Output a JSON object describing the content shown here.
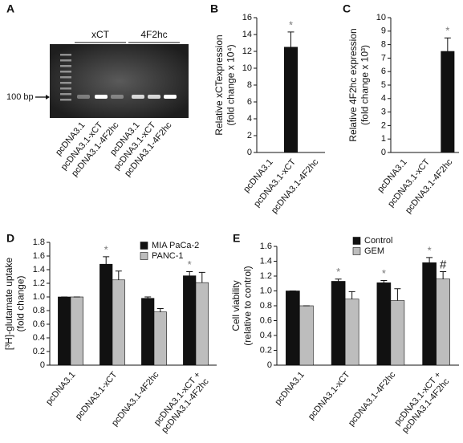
{
  "chart_data": [
    {
      "type": "gel",
      "panel_label": "A",
      "groups": [
        "xCT",
        "4F2hc"
      ],
      "ladder_label": "100 bp",
      "categories": [
        "pcDNA3.1",
        "pcDNA3.1-xCT",
        "pcDNA3.1-4F2hc",
        "pcDNA3.1",
        "pcDNA3.1-xCT",
        "pcDNA3.1-4F2hc"
      ]
    },
    {
      "type": "bar",
      "panel_label": "B",
      "y_label": "Relative xCTexpression\n(fold change x 10⁴)",
      "categories": [
        "pcDNA3.1",
        "pcDNA3.1-xCT",
        "pcDNA3.1-4F2hc"
      ],
      "series": [
        {
          "name": null,
          "color": "#111111",
          "values": [
            0,
            12.5,
            0
          ],
          "errors": [
            0,
            1.8,
            0
          ],
          "labels": [
            null,
            "*",
            null
          ]
        }
      ],
      "ylim": [
        0,
        16
      ],
      "yticks": [
        0,
        2,
        4,
        6,
        8,
        10,
        12,
        14,
        16
      ]
    },
    {
      "type": "bar",
      "panel_label": "C",
      "y_label": "Relative 4F2hc expression\n(fold change x 10³)",
      "categories": [
        "pcDNA3.1",
        "pcDNA3.1-xCT",
        "pcDNA3.1-4F2hc"
      ],
      "series": [
        {
          "name": null,
          "color": "#111111",
          "values": [
            0,
            0,
            7.5
          ],
          "errors": [
            0,
            0,
            1.0
          ],
          "labels": [
            null,
            null,
            "*"
          ]
        }
      ],
      "ylim": [
        0,
        10
      ],
      "yticks": [
        0,
        1,
        2,
        3,
        4,
        5,
        6,
        7,
        8,
        9,
        10
      ]
    },
    {
      "type": "bar",
      "panel_label": "D",
      "y_label": "[³H]-glutamate uptake\n(fold change)",
      "categories": [
        "pcDNA3.1",
        "pcDNA3.1-xCT",
        "pcDNA3.1-4F2hc",
        "pcDNA3.1-xCT +\npcDNA3.1-4F2hc"
      ],
      "series": [
        {
          "name": "MIA PaCa-2",
          "color": "#111111",
          "values": [
            1.0,
            1.48,
            0.98,
            1.31
          ],
          "errors": [
            0,
            0.11,
            0.02,
            0.06
          ],
          "labels": [
            null,
            "*",
            null,
            "*"
          ]
        },
        {
          "name": "PANC-1",
          "color": "#bdbdbd",
          "values": [
            1.0,
            1.25,
            0.78,
            1.21
          ],
          "errors": [
            0,
            0.13,
            0.05,
            0.15
          ],
          "labels": [
            null,
            null,
            null,
            null
          ]
        }
      ],
      "ylim": [
        0,
        1.8
      ],
      "yticks": [
        0,
        0.2,
        0.4,
        0.6,
        0.8,
        {
          "value": 1,
          "label": "1.0"
        },
        1.2,
        1.4,
        1.6,
        1.8
      ]
    },
    {
      "type": "bar",
      "panel_label": "E",
      "y_label": "Cell viability\n(relative to control)",
      "categories": [
        "pcDNA3.1",
        "pcDNA3.1-xCT",
        "pcDNA3.1-4F2hc",
        "pcDNA3.1-xCT +\npcDNA3.1-4F2hc"
      ],
      "series": [
        {
          "name": "Control",
          "color": "#111111",
          "values": [
            1.0,
            1.13,
            1.11,
            1.38
          ],
          "errors": [
            0,
            0.03,
            0.03,
            0.07
          ],
          "labels": [
            null,
            "*",
            "*",
            "*"
          ]
        },
        {
          "name": "GEM",
          "color": "#bdbdbd",
          "values": [
            0.8,
            0.89,
            0.87,
            1.16
          ],
          "errors": [
            0,
            0.1,
            0.16,
            0.1
          ],
          "labels": [
            null,
            null,
            null,
            "#"
          ]
        }
      ],
      "ylim": [
        0,
        1.6
      ],
      "yticks": [
        0,
        0.2,
        0.4,
        0.6,
        0.8,
        {
          "value": 1,
          "label": "1.0"
        },
        1.2,
        1.4,
        1.6
      ]
    }
  ]
}
